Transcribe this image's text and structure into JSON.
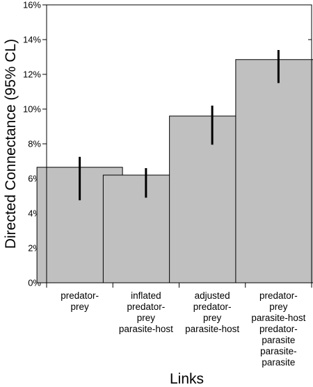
{
  "chart_data": {
    "type": "bar",
    "xlabel": "Links",
    "ylabel": "Directed Connectance (95% CL)",
    "ylim": [
      0,
      16
    ],
    "yticks": [
      0,
      2,
      4,
      6,
      8,
      10,
      12,
      14,
      16
    ],
    "ytick_labels": [
      "0%",
      "2%",
      "4%",
      "6%",
      "8%",
      "10%",
      "12%",
      "14%",
      "16%"
    ],
    "categories": [
      [
        "predator-",
        "prey"
      ],
      [
        "inflated",
        "predator-",
        "prey",
        "parasite-host"
      ],
      [
        "adjusted",
        "predator-",
        "prey",
        "parasite-host"
      ],
      [
        "predator-",
        "prey",
        "parasite-host",
        "predator-",
        "parasite",
        "parasite-",
        "parasite"
      ]
    ],
    "values": [
      6.65,
      6.2,
      9.6,
      12.85
    ],
    "ci_lower": [
      4.75,
      4.9,
      7.95,
      11.5
    ],
    "ci_upper": [
      7.25,
      6.6,
      10.2,
      13.4
    ],
    "colors": {
      "bar_fill": "#c0c0c0",
      "bar_stroke": "#000000",
      "error_bar": "#000000"
    },
    "grid": false,
    "legend": "none"
  }
}
